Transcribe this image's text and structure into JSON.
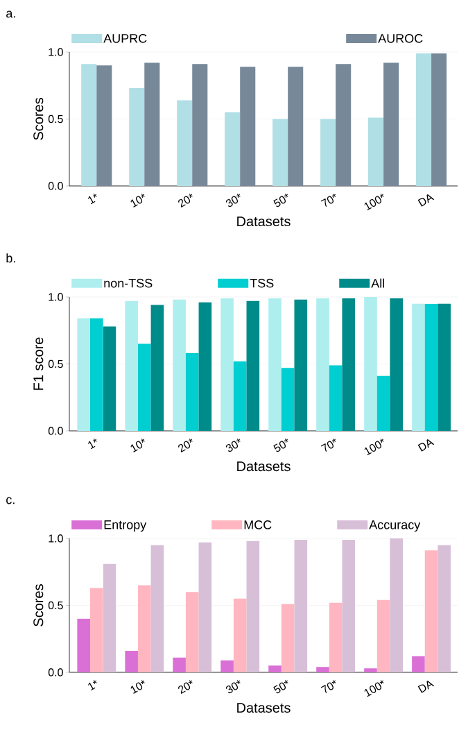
{
  "chart_data": [
    {
      "type": "bar",
      "title": "a.",
      "xlabel": "Datasets",
      "ylabel": "Scores",
      "categories": [
        "1*",
        "10*",
        "20*",
        "30*",
        "50*",
        "70*",
        "100*",
        "DA"
      ],
      "series": [
        {
          "name": "AUPRC",
          "color": "#b0dfe5",
          "values": [
            0.91,
            0.73,
            0.64,
            0.55,
            0.5,
            0.5,
            0.51,
            0.99
          ]
        },
        {
          "name": "AUROC",
          "color": "#778899",
          "values": [
            0.9,
            0.92,
            0.91,
            0.89,
            0.89,
            0.91,
            0.92,
            0.99
          ]
        }
      ],
      "ylim": [
        0,
        1.0
      ],
      "yticks": [
        {
          "value": 0,
          "label": "0.0"
        },
        {
          "value": 0.5,
          "label": "0.5"
        },
        {
          "value": 1.0,
          "label": "1.0"
        }
      ],
      "grid": "y",
      "legend": "top"
    },
    {
      "type": "bar",
      "title": "b.",
      "xlabel": "Datasets",
      "ylabel": "F1 score",
      "categories": [
        "1*",
        "10*",
        "20*",
        "30*",
        "50*",
        "70*",
        "100*",
        "DA"
      ],
      "series": [
        {
          "name": "non-TSS",
          "color": "#afeeee",
          "values": [
            0.84,
            0.97,
            0.98,
            0.99,
            0.99,
            0.99,
            1.0,
            0.95
          ]
        },
        {
          "name": "TSS",
          "color": "#00ced1",
          "values": [
            0.84,
            0.65,
            0.58,
            0.52,
            0.47,
            0.49,
            0.41,
            0.95
          ]
        },
        {
          "name": "All",
          "color": "#008b8b",
          "values": [
            0.78,
            0.94,
            0.96,
            0.97,
            0.98,
            0.99,
            0.99,
            0.95
          ]
        }
      ],
      "ylim": [
        0,
        1.0
      ],
      "yticks": [
        {
          "value": 0,
          "label": "0.0"
        },
        {
          "value": 0.5,
          "label": "0.5"
        },
        {
          "value": 1.0,
          "label": "1.0"
        }
      ],
      "grid": "y",
      "legend": "top"
    },
    {
      "type": "bar",
      "title": "c.",
      "xlabel": "Datasets",
      "ylabel": "Scores",
      "categories": [
        "1*",
        "10*",
        "20*",
        "30*",
        "50*",
        "70*",
        "100*",
        "DA"
      ],
      "series": [
        {
          "name": "Entropy",
          "color": "#da70d6",
          "values": [
            0.4,
            0.16,
            0.11,
            0.09,
            0.05,
            0.04,
            0.03,
            0.12
          ]
        },
        {
          "name": "MCC",
          "color": "#ffb6c1",
          "values": [
            0.63,
            0.65,
            0.6,
            0.55,
            0.51,
            0.52,
            0.54,
            0.91
          ]
        },
        {
          "name": "Accuracy",
          "color": "#d8bfd8",
          "values": [
            0.81,
            0.95,
            0.97,
            0.98,
            0.99,
            0.99,
            1.0,
            0.95
          ]
        }
      ],
      "ylim": [
        0,
        1.0
      ],
      "yticks": [
        {
          "value": 0,
          "label": "0.0"
        },
        {
          "value": 0.5,
          "label": "0.5"
        },
        {
          "value": 1.0,
          "label": "1.0"
        }
      ],
      "grid": "y",
      "legend": "top"
    }
  ]
}
